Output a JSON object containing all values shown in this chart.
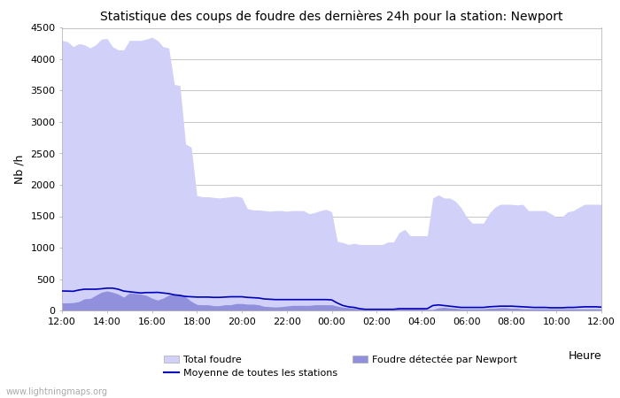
{
  "title": "Statistique des coups de foudre des dernières 24h pour la station: Newport",
  "xlabel": "Heure",
  "ylabel": "Nb /h",
  "ylim": [
    0,
    4500
  ],
  "yticks": [
    0,
    500,
    1000,
    1500,
    2000,
    2500,
    3000,
    3500,
    4000,
    4500
  ],
  "xtick_labels": [
    "12:00",
    "14:00",
    "16:00",
    "18:00",
    "20:00",
    "22:00",
    "00:00",
    "02:00",
    "04:00",
    "06:00",
    "08:00",
    "10:00",
    "12:00"
  ],
  "watermark": "www.lightningmaps.org",
  "color_total": "#d0d0f8",
  "color_local": "#9090dd",
  "color_mean": "#0000bb",
  "bg_color": "#ffffff",
  "grid_color": "#bbbbbb",
  "total_foudre": [
    4300,
    4280,
    4200,
    4250,
    4230,
    4180,
    4230,
    4320,
    4330,
    4200,
    4150,
    4150,
    4300,
    4300,
    4300,
    4320,
    4350,
    4300,
    4200,
    4180,
    3600,
    3580,
    2650,
    2600,
    1830,
    1810,
    1810,
    1800,
    1790,
    1800,
    1810,
    1820,
    1800,
    1620,
    1600,
    1600,
    1590,
    1580,
    1590,
    1590,
    1580,
    1590,
    1590,
    1590,
    1540,
    1560,
    1590,
    1610,
    1570,
    1100,
    1080,
    1050,
    1070,
    1050,
    1050,
    1050,
    1050,
    1050,
    1090,
    1090,
    1240,
    1290,
    1190,
    1190,
    1190,
    1190,
    1790,
    1840,
    1790,
    1790,
    1740,
    1640,
    1490,
    1390,
    1390,
    1390,
    1540,
    1640,
    1690,
    1690,
    1690,
    1680,
    1690,
    1590,
    1590,
    1590,
    1590,
    1540,
    1490,
    1490,
    1570,
    1590,
    1640,
    1690,
    1690,
    1690,
    1690
  ],
  "local_foudre": [
    120,
    120,
    125,
    140,
    185,
    190,
    240,
    290,
    310,
    290,
    260,
    210,
    280,
    270,
    260,
    240,
    195,
    165,
    195,
    245,
    265,
    260,
    215,
    145,
    95,
    90,
    90,
    75,
    75,
    90,
    90,
    110,
    110,
    100,
    100,
    90,
    65,
    60,
    55,
    60,
    70,
    80,
    80,
    80,
    80,
    90,
    90,
    90,
    90,
    70,
    50,
    45,
    35,
    25,
    15,
    15,
    15,
    15,
    15,
    15,
    25,
    25,
    25,
    25,
    25,
    15,
    15,
    40,
    50,
    40,
    35,
    25,
    25,
    25,
    25,
    25,
    35,
    35,
    45,
    45,
    35,
    35,
    25,
    25,
    25,
    25,
    25,
    25,
    25,
    25,
    25,
    25,
    25,
    25,
    25,
    25,
    25
  ],
  "mean_foudre": [
    310,
    308,
    305,
    325,
    338,
    338,
    338,
    345,
    355,
    355,
    338,
    308,
    298,
    288,
    278,
    285,
    285,
    288,
    278,
    268,
    248,
    238,
    223,
    218,
    213,
    213,
    213,
    208,
    208,
    213,
    218,
    218,
    218,
    208,
    203,
    198,
    183,
    178,
    173,
    173,
    173,
    173,
    173,
    173,
    173,
    173,
    173,
    173,
    168,
    118,
    78,
    58,
    48,
    28,
    18,
    18,
    18,
    18,
    18,
    18,
    28,
    28,
    28,
    28,
    28,
    28,
    78,
    88,
    78,
    68,
    58,
    48,
    48,
    48,
    48,
    48,
    58,
    63,
    68,
    68,
    68,
    63,
    58,
    53,
    48,
    48,
    48,
    43,
    43,
    43,
    48,
    48,
    53,
    58,
    58,
    58,
    53
  ]
}
